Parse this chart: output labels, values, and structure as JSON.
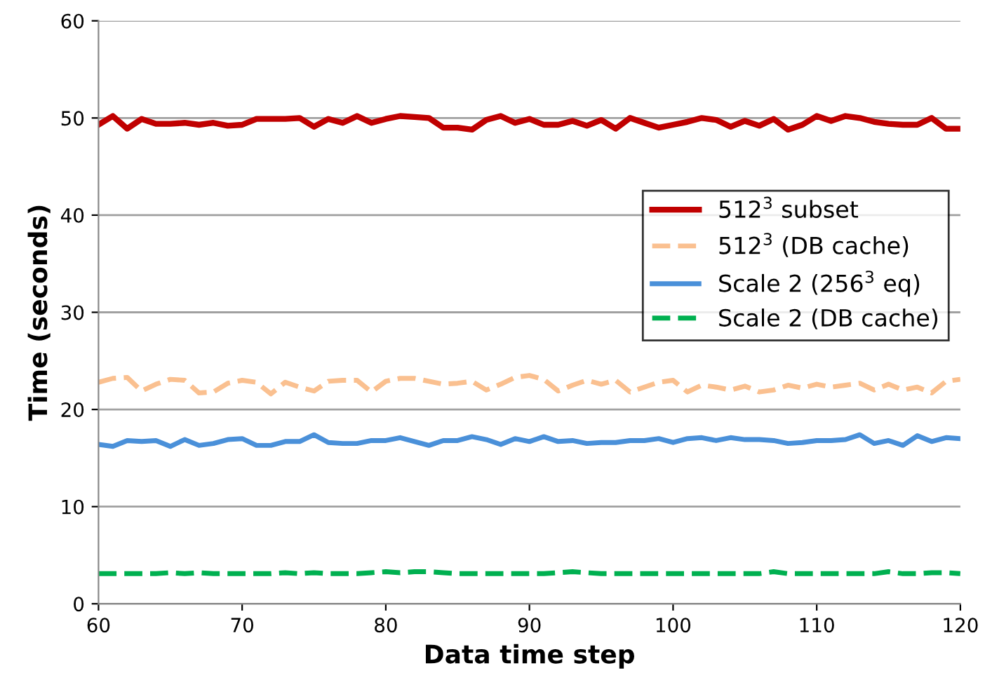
{
  "chart_data": {
    "type": "line",
    "xlabel": "Data time step",
    "ylabel": "Time (seconds)",
    "xlim": [
      60,
      120
    ],
    "xticks": [
      60,
      70,
      80,
      90,
      100,
      110,
      120
    ],
    "ylim": [
      0,
      60
    ],
    "yticks": [
      0,
      10,
      20,
      30,
      40,
      50,
      60
    ],
    "grid": "y",
    "legend": "right",
    "x": [
      60,
      61,
      62,
      63,
      64,
      65,
      66,
      67,
      68,
      69,
      70,
      71,
      72,
      73,
      74,
      75,
      76,
      77,
      78,
      79,
      80,
      81,
      82,
      83,
      84,
      85,
      86,
      87,
      88,
      89,
      90,
      91,
      92,
      93,
      94,
      95,
      96,
      97,
      98,
      99,
      100,
      101,
      102,
      103,
      104,
      105,
      106,
      107,
      108,
      109,
      110,
      111,
      112,
      113,
      114,
      115,
      116,
      117,
      118,
      119,
      120
    ],
    "series": [
      {
        "name": "512$^{3}$ subset",
        "color": "#c00000",
        "line_style": "solid",
        "values": [
          49.3,
          50.2,
          48.9,
          49.9,
          49.4,
          49.4,
          49.5,
          49.3,
          49.5,
          49.2,
          49.3,
          49.9,
          49.9,
          49.9,
          50.0,
          49.1,
          49.9,
          49.5,
          50.2,
          49.5,
          49.9,
          50.2,
          50.1,
          50.0,
          49.0,
          49.0,
          48.8,
          49.8,
          50.2,
          49.5,
          49.9,
          49.3,
          49.3,
          49.7,
          49.2,
          49.8,
          48.9,
          50.0,
          49.5,
          49.0,
          49.3,
          49.6,
          50.0,
          49.8,
          49.1,
          49.7,
          49.2,
          49.9,
          48.8,
          49.3,
          50.2,
          49.7,
          50.2,
          50.0,
          49.6,
          49.4,
          49.3,
          49.3,
          50.0,
          48.9,
          48.9
        ]
      },
      {
        "name": "512$^{3}$ (DB cache)",
        "color": "#fac090",
        "line_style": "dashed",
        "values": [
          22.8,
          23.2,
          23.3,
          21.9,
          22.6,
          23.1,
          23.0,
          21.7,
          21.8,
          22.7,
          23.0,
          22.8,
          21.6,
          22.8,
          22.3,
          21.9,
          22.9,
          23.0,
          23.0,
          21.8,
          22.9,
          23.2,
          23.2,
          22.9,
          22.6,
          22.7,
          22.9,
          22.0,
          22.6,
          23.3,
          23.5,
          23.1,
          21.9,
          22.5,
          23.0,
          22.6,
          23.0,
          21.8,
          22.3,
          22.8,
          23.0,
          21.8,
          22.5,
          22.3,
          22.0,
          22.4,
          21.8,
          22.0,
          22.5,
          22.2,
          22.6,
          22.3,
          22.5,
          22.7,
          22.0,
          22.6,
          22.0,
          22.3,
          21.7,
          22.9,
          23.1
        ]
      },
      {
        "name": "Scale 2 (256$^{3}$ eq)",
        "color": "#4a90d9",
        "line_style": "solid",
        "values": [
          16.4,
          16.2,
          16.8,
          16.7,
          16.8,
          16.2,
          16.9,
          16.3,
          16.5,
          16.9,
          17.0,
          16.3,
          16.3,
          16.7,
          16.7,
          17.4,
          16.6,
          16.5,
          16.5,
          16.8,
          16.8,
          17.1,
          16.7,
          16.3,
          16.8,
          16.8,
          17.2,
          16.9,
          16.4,
          17.0,
          16.7,
          17.2,
          16.7,
          16.8,
          16.5,
          16.6,
          16.6,
          16.8,
          16.8,
          17.0,
          16.6,
          17.0,
          17.1,
          16.8,
          17.1,
          16.9,
          16.9,
          16.8,
          16.5,
          16.6,
          16.8,
          16.8,
          16.9,
          17.4,
          16.5,
          16.8,
          16.3,
          17.3,
          16.7,
          17.1,
          17.0
        ]
      },
      {
        "name": "Scale 2 (DB cache)",
        "color": "#00b050",
        "line_style": "dashed",
        "values": [
          3.1,
          3.1,
          3.1,
          3.1,
          3.1,
          3.2,
          3.1,
          3.2,
          3.1,
          3.1,
          3.1,
          3.1,
          3.1,
          3.2,
          3.1,
          3.2,
          3.1,
          3.1,
          3.1,
          3.2,
          3.3,
          3.2,
          3.3,
          3.3,
          3.2,
          3.1,
          3.1,
          3.1,
          3.1,
          3.1,
          3.1,
          3.1,
          3.2,
          3.3,
          3.2,
          3.1,
          3.1,
          3.1,
          3.1,
          3.1,
          3.1,
          3.1,
          3.1,
          3.1,
          3.1,
          3.1,
          3.1,
          3.3,
          3.1,
          3.1,
          3.1,
          3.1,
          3.1,
          3.1,
          3.1,
          3.3,
          3.1,
          3.1,
          3.2,
          3.2,
          3.1
        ]
      }
    ]
  }
}
